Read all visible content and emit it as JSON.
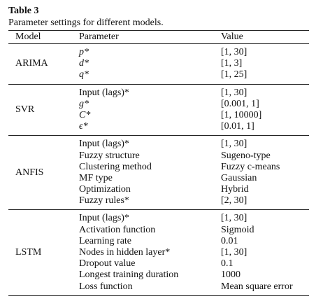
{
  "table": {
    "label": "Table 3",
    "caption": "Parameter settings for different models.",
    "headers": {
      "model": "Model",
      "parameter": "Parameter",
      "value": "Value"
    },
    "groups": [
      {
        "model": "ARIMA",
        "rows": [
          {
            "parameter": "p*",
            "value": "[1, 30]",
            "italic": true
          },
          {
            "parameter": "d*",
            "value": "[1, 3]",
            "italic": true
          },
          {
            "parameter": "q*",
            "value": "[1, 25]",
            "italic": true
          }
        ]
      },
      {
        "model": "SVR",
        "rows": [
          {
            "parameter": "Input (lags)*",
            "value": "[1, 30]",
            "italic": false
          },
          {
            "parameter": "g*",
            "value": "[0.001, 1]",
            "italic": true
          },
          {
            "parameter": "C*",
            "value": "[1, 10000]",
            "italic": true
          },
          {
            "parameter": "ϵ*",
            "value": "[0.01, 1]",
            "italic": true
          }
        ]
      },
      {
        "model": "ANFIS",
        "rows": [
          {
            "parameter": "Input (lags)*",
            "value": "[1, 30]",
            "italic": false
          },
          {
            "parameter": "Fuzzy structure",
            "value": "Sugeno-type",
            "italic": false
          },
          {
            "parameter": "Clustering method",
            "value": "Fuzzy c-means",
            "italic": false
          },
          {
            "parameter": "MF type",
            "value": "Gaussian",
            "italic": false
          },
          {
            "parameter": "Optimization",
            "value": "Hybrid",
            "italic": false
          },
          {
            "parameter": "Fuzzy rules*",
            "value": "[2, 30]",
            "italic": false
          }
        ]
      },
      {
        "model": "LSTM",
        "rows": [
          {
            "parameter": "Input (lags)*",
            "value": "[1, 30]",
            "italic": false
          },
          {
            "parameter": "Activation function",
            "value": "Sigmoid",
            "italic": false
          },
          {
            "parameter": "Learning rate",
            "value": "0.01",
            "italic": false
          },
          {
            "parameter": "Nodes in hidden layer*",
            "value": "[1, 30]",
            "italic": false
          },
          {
            "parameter": "Dropout value",
            "value": "0.1",
            "italic": false
          },
          {
            "parameter": "Longest training duration",
            "value": "1000",
            "italic": false
          },
          {
            "parameter": "Loss function",
            "value": "Mean square error",
            "italic": false
          }
        ]
      }
    ]
  }
}
